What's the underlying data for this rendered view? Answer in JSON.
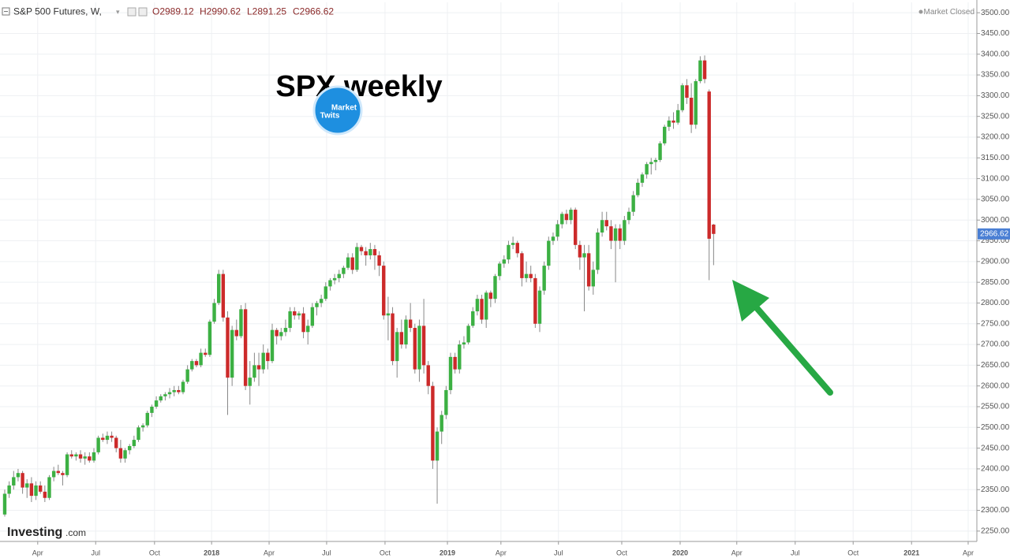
{
  "chart_data": {
    "type": "candlestick",
    "title": "S&P 500 Futures, W,",
    "ohlc_labels": [
      "O2989.12",
      "H2990.62",
      "L2891.25",
      "C2966.62"
    ],
    "status": "Market Closed",
    "annotation": "SPX weekly",
    "logo": [
      "Market",
      "Twits"
    ],
    "watermark": [
      "Investing",
      ".com"
    ],
    "last_price": 2966.62,
    "up_color": "#3cb043",
    "down_color": "#cc2a2a",
    "last_price_color": "#4a7fd4",
    "grid": true,
    "xlim": [
      -1.06,
      218.05
    ],
    "ylim": [
      2225,
      3525
    ],
    "xticks": [
      {
        "value": 7.4,
        "label": "Apr"
      },
      {
        "value": 20.4,
        "label": "Jul"
      },
      {
        "value": 33.6,
        "label": "Oct"
      },
      {
        "value": 46.4,
        "label": "2018"
      },
      {
        "value": 59.3,
        "label": "Apr"
      },
      {
        "value": 72.2,
        "label": "Jul"
      },
      {
        "value": 85.3,
        "label": "Oct"
      },
      {
        "value": 99.3,
        "label": "2019"
      },
      {
        "value": 111.3,
        "label": "Apr"
      },
      {
        "value": 124.2,
        "label": "Jul"
      },
      {
        "value": 138.4,
        "label": "Oct"
      },
      {
        "value": 151.5,
        "label": "2020"
      },
      {
        "value": 164.2,
        "label": "Apr"
      },
      {
        "value": 177.3,
        "label": "Jul"
      },
      {
        "value": 190.3,
        "label": "Oct"
      },
      {
        "value": 203.4,
        "label": "2021"
      },
      {
        "value": 216.1,
        "label": "Apr"
      }
    ],
    "yticks": [
      {
        "value": 2250,
        "label": "2250.00"
      },
      {
        "value": 2300,
        "label": "2300.00"
      },
      {
        "value": 2350,
        "label": "2350.00"
      },
      {
        "value": 2400,
        "label": "2400.00"
      },
      {
        "value": 2450,
        "label": "2450.00"
      },
      {
        "value": 2500,
        "label": "2500.00"
      },
      {
        "value": 2550,
        "label": "2550.00"
      },
      {
        "value": 2600,
        "label": "2600.00"
      },
      {
        "value": 2650,
        "label": "2650.00"
      },
      {
        "value": 2700,
        "label": "2700.00"
      },
      {
        "value": 2750,
        "label": "2750.00"
      },
      {
        "value": 2800,
        "label": "2800.00"
      },
      {
        "value": 2850,
        "label": "2850.00"
      },
      {
        "value": 2900,
        "label": "2900.00"
      },
      {
        "value": 2950,
        "label": "2950.00"
      },
      {
        "value": 3000,
        "label": "3000.00"
      },
      {
        "value": 3050,
        "label": "3050.00"
      },
      {
        "value": 3100,
        "label": "3100.00"
      },
      {
        "value": 3150,
        "label": "3150.00"
      },
      {
        "value": 3200,
        "label": "3200.00"
      },
      {
        "value": 3250,
        "label": "3250.00"
      },
      {
        "value": 3300,
        "label": "3300.00"
      },
      {
        "value": 3350,
        "label": "3350.00"
      },
      {
        "value": 3400,
        "label": "3400.00"
      },
      {
        "value": 3450,
        "label": "3450.00"
      },
      {
        "value": 3500,
        "label": "3500.00"
      }
    ],
    "open": [
      2290,
      2340,
      2360,
      2380,
      2390,
      2355,
      2365,
      2335,
      2360,
      2345,
      2330,
      2380,
      2395,
      2390,
      2385,
      2435,
      2430,
      2435,
      2425,
      2430,
      2420,
      2440,
      2475,
      2470,
      2480,
      2475,
      2450,
      2425,
      2445,
      2455,
      2470,
      2500,
      2505,
      2535,
      2550,
      2565,
      2575,
      2580,
      2585,
      2590,
      2585,
      2610,
      2640,
      2660,
      2650,
      2680,
      2675,
      2755,
      2800,
      2870,
      2765,
      2620,
      2735,
      2720,
      2785,
      2600,
      2620,
      2650,
      2640,
      2680,
      2660,
      2735,
      2720,
      2730,
      2740,
      2780,
      2770,
      2775,
      2730,
      2745,
      2790,
      2800,
      2810,
      2840,
      2855,
      2860,
      2870,
      2885,
      2910,
      2880,
      2935,
      2925,
      2915,
      2930,
      2915,
      2890,
      2770,
      2775,
      2660,
      2730,
      2700,
      2760,
      2740,
      2640,
      2745,
      2650,
      2600,
      2420,
      2490,
      2530,
      2590,
      2670,
      2640,
      2700,
      2705,
      2745,
      2780,
      2810,
      2760,
      2825,
      2810,
      2865,
      2895,
      2905,
      2940,
      2945,
      2920,
      2860,
      2870,
      2860,
      2750,
      2830,
      2890,
      2950,
      2960,
      2990,
      3015,
      3000,
      3025,
      2940,
      2910,
      2920,
      2840,
      2880,
      2970,
      3000,
      2985,
      2950,
      2980,
      2950,
      3000,
      3020,
      3060,
      3090,
      3110,
      3135,
      3140,
      3145,
      3185,
      3225,
      3240,
      3235,
      3265,
      3325,
      3295,
      3230,
      3335,
      3385,
      3310,
      2989.12
    ],
    "high": [
      2350,
      2370,
      2395,
      2400,
      2395,
      2375,
      2380,
      2370,
      2370,
      2360,
      2385,
      2405,
      2410,
      2395,
      2440,
      2445,
      2440,
      2445,
      2440,
      2440,
      2450,
      2480,
      2485,
      2490,
      2490,
      2480,
      2470,
      2450,
      2460,
      2480,
      2505,
      2510,
      2540,
      2555,
      2575,
      2580,
      2585,
      2595,
      2600,
      2600,
      2615,
      2650,
      2665,
      2665,
      2690,
      2690,
      2760,
      2810,
      2880,
      2880,
      2780,
      2745,
      2760,
      2795,
      2800,
      2660,
      2680,
      2680,
      2700,
      2690,
      2750,
      2740,
      2740,
      2760,
      2790,
      2790,
      2780,
      2790,
      2760,
      2800,
      2805,
      2820,
      2850,
      2860,
      2870,
      2880,
      2890,
      2920,
      2920,
      2945,
      2940,
      2935,
      2945,
      2940,
      2925,
      2900,
      2815,
      2790,
      2740,
      2760,
      2770,
      2800,
      2750,
      2760,
      2810,
      2660,
      2610,
      2500,
      2540,
      2600,
      2680,
      2680,
      2710,
      2720,
      2750,
      2790,
      2820,
      2820,
      2830,
      2830,
      2870,
      2900,
      2915,
      2950,
      2960,
      2950,
      2925,
      2900,
      2890,
      2870,
      2840,
      2900,
      2960,
      2970,
      3000,
      3020,
      3025,
      3030,
      3030,
      2950,
      2940,
      2940,
      2900,
      2980,
      3020,
      3020,
      3000,
      2990,
      2990,
      3010,
      3030,
      3070,
      3100,
      3115,
      3140,
      3150,
      3150,
      3190,
      3230,
      3250,
      3260,
      3280,
      3330,
      3340,
      3330,
      3340,
      3395,
      3397,
      3315,
      2990.62
    ],
    "low": [
      2285,
      2330,
      2350,
      2370,
      2340,
      2330,
      2320,
      2325,
      2340,
      2320,
      2325,
      2370,
      2385,
      2360,
      2380,
      2425,
      2420,
      2415,
      2410,
      2415,
      2415,
      2435,
      2465,
      2460,
      2465,
      2440,
      2415,
      2415,
      2435,
      2450,
      2465,
      2490,
      2500,
      2525,
      2545,
      2560,
      2565,
      2570,
      2575,
      2580,
      2580,
      2605,
      2635,
      2645,
      2645,
      2670,
      2670,
      2750,
      2795,
      2755,
      2530,
      2600,
      2710,
      2715,
      2590,
      2555,
      2610,
      2600,
      2630,
      2640,
      2655,
      2700,
      2710,
      2720,
      2730,
      2760,
      2760,
      2715,
      2700,
      2740,
      2770,
      2790,
      2805,
      2830,
      2845,
      2850,
      2860,
      2880,
      2870,
      2875,
      2915,
      2890,
      2905,
      2880,
      2865,
      2760,
      2710,
      2650,
      2620,
      2690,
      2690,
      2730,
      2630,
      2610,
      2630,
      2580,
      2400,
      2316,
      2460,
      2520,
      2580,
      2630,
      2630,
      2690,
      2700,
      2740,
      2770,
      2750,
      2740,
      2790,
      2800,
      2855,
      2885,
      2895,
      2930,
      2910,
      2840,
      2850,
      2850,
      2740,
      2730,
      2820,
      2880,
      2940,
      2950,
      2980,
      2990,
      2990,
      2930,
      2880,
      2780,
      2830,
      2820,
      2870,
      2960,
      2975,
      2930,
      2850,
      2930,
      2940,
      2990,
      3010,
      3055,
      3080,
      3100,
      3110,
      3120,
      3140,
      3180,
      3215,
      3220,
      3230,
      3260,
      3280,
      3210,
      3220,
      3330,
      3330,
      2855,
      2891.25
    ],
    "close": [
      2340,
      2360,
      2380,
      2390,
      2355,
      2365,
      2335,
      2360,
      2345,
      2330,
      2380,
      2395,
      2390,
      2385,
      2435,
      2430,
      2435,
      2425,
      2430,
      2420,
      2440,
      2475,
      2470,
      2480,
      2475,
      2450,
      2425,
      2445,
      2455,
      2470,
      2500,
      2505,
      2535,
      2550,
      2565,
      2575,
      2580,
      2585,
      2590,
      2585,
      2610,
      2640,
      2660,
      2650,
      2680,
      2675,
      2755,
      2800,
      2870,
      2765,
      2620,
      2735,
      2720,
      2785,
      2600,
      2620,
      2650,
      2640,
      2680,
      2660,
      2735,
      2720,
      2730,
      2740,
      2780,
      2770,
      2775,
      2730,
      2745,
      2790,
      2800,
      2810,
      2840,
      2855,
      2860,
      2870,
      2885,
      2910,
      2880,
      2935,
      2925,
      2915,
      2930,
      2915,
      2890,
      2770,
      2775,
      2660,
      2730,
      2700,
      2760,
      2740,
      2640,
      2745,
      2650,
      2600,
      2420,
      2490,
      2530,
      2590,
      2670,
      2640,
      2700,
      2705,
      2745,
      2780,
      2810,
      2760,
      2825,
      2810,
      2865,
      2895,
      2905,
      2940,
      2945,
      2920,
      2860,
      2870,
      2860,
      2750,
      2830,
      2890,
      2950,
      2960,
      2990,
      3015,
      3000,
      3025,
      2940,
      2910,
      2920,
      2840,
      2880,
      2970,
      3000,
      2985,
      2950,
      2980,
      2950,
      3000,
      3020,
      3060,
      3090,
      3110,
      3135,
      3140,
      3145,
      3185,
      3225,
      3240,
      3235,
      3265,
      3325,
      3295,
      3230,
      3335,
      3385,
      3340,
      2955,
      2966.62
    ]
  }
}
